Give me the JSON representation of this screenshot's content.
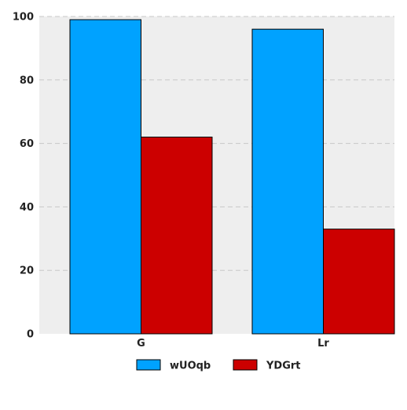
{
  "chart_data": {
    "type": "bar",
    "categories": [
      "G",
      "Lr"
    ],
    "series": [
      {
        "name": "wUOqb",
        "values": [
          99,
          96
        ],
        "color": "#00A2FF"
      },
      {
        "name": "YDGrt",
        "values": [
          62,
          33
        ],
        "color": "#CC0000"
      }
    ],
    "ylim": [
      0,
      100
    ],
    "yticks": [
      0,
      20,
      40,
      60,
      80,
      100
    ],
    "grid": true,
    "grid_style": "dashed",
    "legend_position": "bottom",
    "plot_background": "#EEEEEE",
    "xlabel": "",
    "ylabel": "",
    "title": ""
  }
}
